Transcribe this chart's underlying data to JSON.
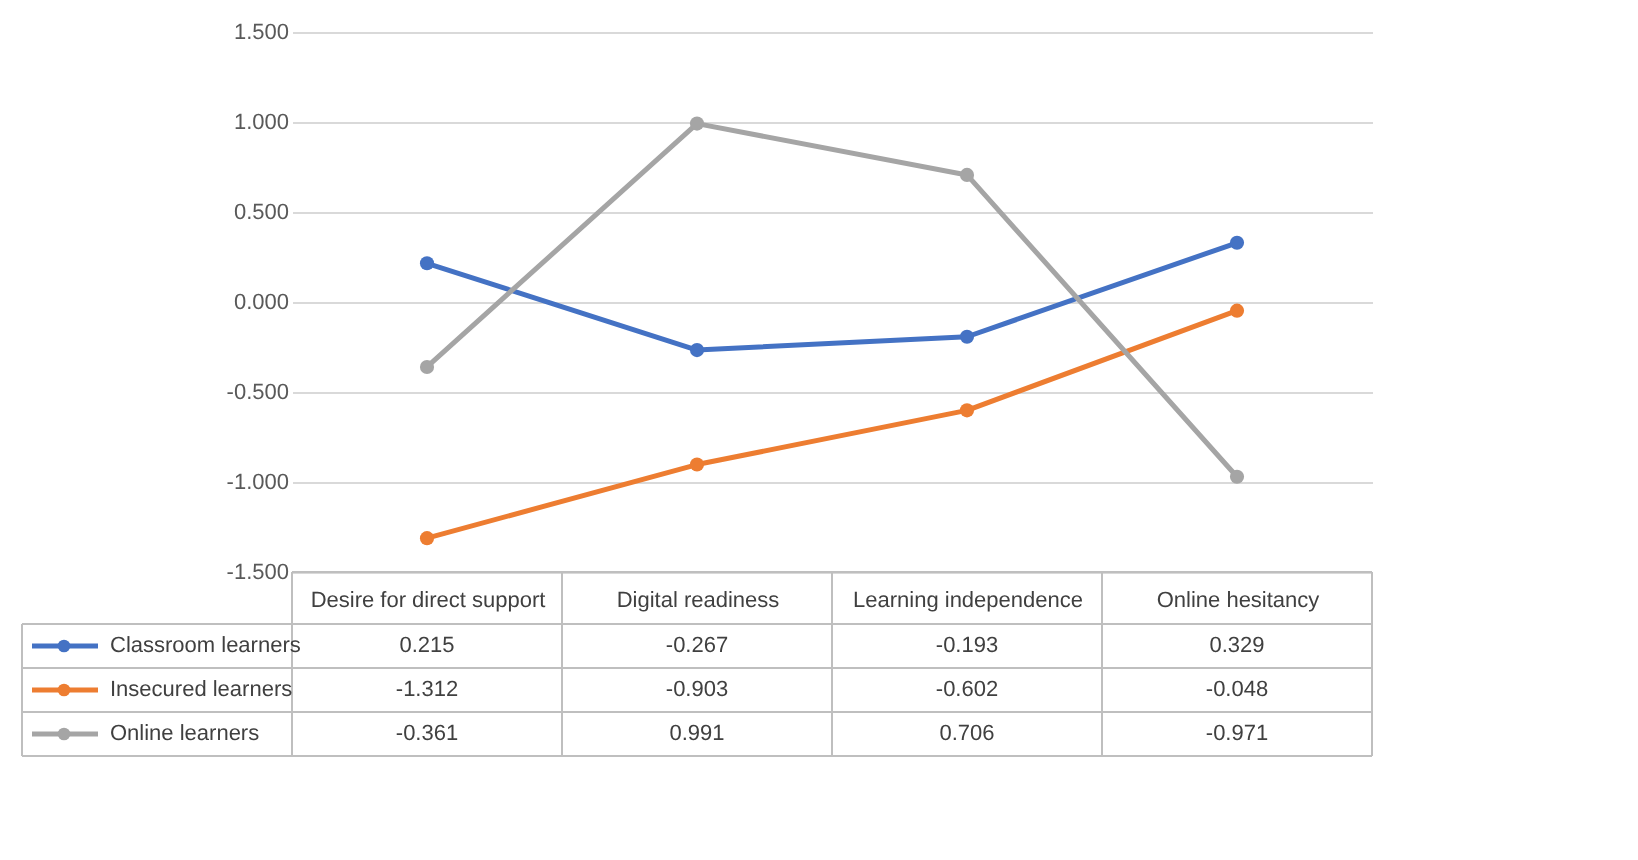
{
  "chart_data": {
    "type": "line",
    "categories": [
      "Desire for direct support",
      "Digital readiness",
      "Learning independence",
      "Online hesitancy"
    ],
    "series": [
      {
        "name": "Classroom learners",
        "color": "#4472c4",
        "values": [
          0.215,
          -0.267,
          -0.193,
          0.329
        ]
      },
      {
        "name": "Insecured learners",
        "color": "#ed7d31",
        "values": [
          -1.312,
          -0.903,
          -0.602,
          -0.048
        ]
      },
      {
        "name": "Online learners",
        "color": "#a5a5a5",
        "values": [
          -0.361,
          0.991,
          0.706,
          -0.971
        ]
      }
    ],
    "ylim": [
      -1.5,
      1.5
    ],
    "yticks": [
      {
        "value": -1.5,
        "label": "-1.500"
      },
      {
        "value": -1.0,
        "label": "-1.000"
      },
      {
        "value": -0.5,
        "label": "-0.500"
      },
      {
        "value": 0,
        "label": "0.000"
      },
      {
        "value": 0.5,
        "label": "0.500"
      },
      {
        "value": 1.0,
        "label": "1.000"
      },
      {
        "value": 1.5,
        "label": "1.500"
      }
    ],
    "grid": "y",
    "marker": "circle",
    "line_style": "solid",
    "legend": "bottom",
    "data_labels": true
  }
}
